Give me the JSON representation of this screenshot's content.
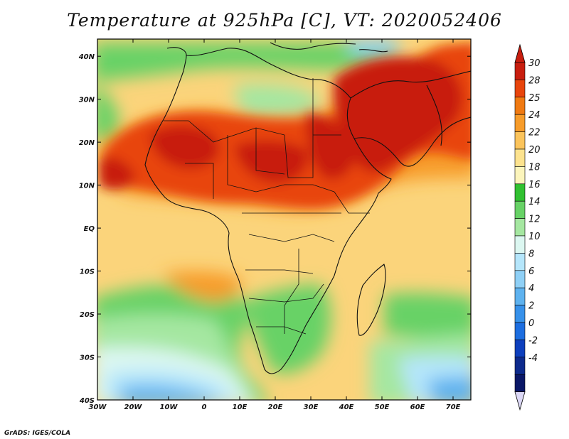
{
  "title": "Temperature at 925hPa [C], VT: 2020052406",
  "credit": "GrADS: IGES/COLA",
  "map": {
    "lon_ticks": [
      "30W",
      "20W",
      "10W",
      "0",
      "10E",
      "20E",
      "30E",
      "40E",
      "50E",
      "60E",
      "70E"
    ],
    "lat_ticks": [
      "40N",
      "30N",
      "20N",
      "10N",
      "EQ",
      "10S",
      "20S",
      "30S",
      "40S"
    ],
    "lon_range": [
      -30,
      75
    ],
    "lat_range": [
      -40,
      44
    ]
  },
  "colorbar": {
    "labels": [
      "30",
      "28",
      "25",
      "24",
      "22",
      "20",
      "18",
      "16",
      "14",
      "12",
      "10",
      "8",
      "6",
      "4",
      "2",
      "0",
      "-2",
      "-4"
    ],
    "colors": [
      "#c81e0f",
      "#e8450c",
      "#f07a12",
      "#f79c2a",
      "#fbc45c",
      "#fde38f",
      "#fcf5bc",
      "#31c131",
      "#67d266",
      "#a5e7a1",
      "#dcf7f1",
      "#b5e6fb",
      "#8fd0f6",
      "#5eb2ef",
      "#3791ea",
      "#1d6ee0",
      "#0d3fbd",
      "#0d2a8c",
      "#0a1767"
    ],
    "over_color": "#c81e0f",
    "under_color": "#dcd8f6"
  }
}
